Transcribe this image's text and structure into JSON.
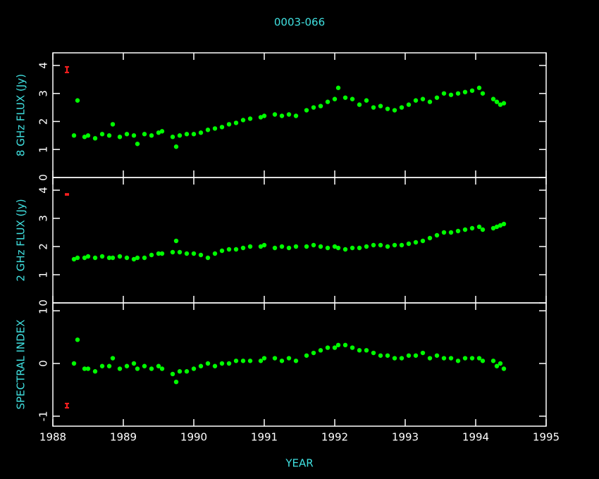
{
  "title": "0003-066",
  "xlabel": "YEAR",
  "chart_data": [
    {
      "type": "scatter",
      "ylabel": "8 GHz FLUX (Jy)",
      "color": "#00ff00",
      "x": [
        1988.3,
        1988.35,
        1988.45,
        1988.5,
        1988.6,
        1988.7,
        1988.8,
        1988.85,
        1988.95,
        1989.05,
        1989.15,
        1989.2,
        1989.3,
        1989.4,
        1989.5,
        1989.55,
        1989.7,
        1989.75,
        1989.8,
        1989.9,
        1990.0,
        1990.1,
        1990.2,
        1990.3,
        1990.4,
        1990.5,
        1990.6,
        1990.7,
        1990.8,
        1990.95,
        1991.0,
        1991.15,
        1991.25,
        1991.35,
        1991.45,
        1991.6,
        1991.7,
        1991.8,
        1991.9,
        1992.0,
        1992.05,
        1992.15,
        1992.25,
        1992.35,
        1992.45,
        1992.55,
        1992.65,
        1992.75,
        1992.85,
        1992.95,
        1993.05,
        1993.15,
        1993.25,
        1993.35,
        1993.45,
        1993.55,
        1993.65,
        1993.75,
        1993.85,
        1993.95,
        1994.05,
        1994.1,
        1994.25,
        1994.3,
        1994.35,
        1994.4
      ],
      "values": [
        1.5,
        2.75,
        1.45,
        1.5,
        1.4,
        1.55,
        1.5,
        1.9,
        1.45,
        1.55,
        1.5,
        1.2,
        1.55,
        1.5,
        1.6,
        1.65,
        1.45,
        1.1,
        1.5,
        1.55,
        1.55,
        1.6,
        1.7,
        1.75,
        1.8,
        1.9,
        1.95,
        2.05,
        2.1,
        2.15,
        2.2,
        2.25,
        2.2,
        2.25,
        2.2,
        2.4,
        2.5,
        2.55,
        2.7,
        2.8,
        3.2,
        2.85,
        2.8,
        2.6,
        2.75,
        2.5,
        2.55,
        2.45,
        2.4,
        2.5,
        2.6,
        2.75,
        2.8,
        2.7,
        2.85,
        3.0,
        2.95,
        3.0,
        3.05,
        3.1,
        3.2,
        3.0,
        2.8,
        2.7,
        2.6,
        2.65
      ],
      "xlim": [
        1988,
        1995
      ],
      "xticks": [
        1988,
        1989,
        1990,
        1991,
        1992,
        1993,
        1994,
        1995
      ],
      "ylim": [
        0,
        4.45
      ],
      "yticks": [
        0,
        1,
        2,
        3,
        4
      ],
      "error_bar": {
        "x": 1988.2,
        "y": 3.85,
        "error": 0.1,
        "color": "#ff2020"
      }
    },
    {
      "type": "scatter",
      "ylabel": "2 GHz FLUX (Jy)",
      "color": "#00ff00",
      "x": [
        1988.3,
        1988.35,
        1988.45,
        1988.5,
        1988.6,
        1988.7,
        1988.8,
        1988.85,
        1988.95,
        1989.05,
        1989.15,
        1989.2,
        1989.3,
        1989.4,
        1989.5,
        1989.55,
        1989.7,
        1989.75,
        1989.8,
        1989.9,
        1990.0,
        1990.1,
        1990.2,
        1990.3,
        1990.4,
        1990.5,
        1990.6,
        1990.7,
        1990.8,
        1990.95,
        1991.0,
        1991.15,
        1991.25,
        1991.35,
        1991.45,
        1991.6,
        1991.7,
        1991.8,
        1991.9,
        1992.0,
        1992.05,
        1992.15,
        1992.25,
        1992.35,
        1992.45,
        1992.55,
        1992.65,
        1992.75,
        1992.85,
        1992.95,
        1993.05,
        1993.15,
        1993.25,
        1993.35,
        1993.45,
        1993.55,
        1993.65,
        1993.75,
        1993.85,
        1993.95,
        1994.05,
        1994.1,
        1994.25,
        1994.3,
        1994.35,
        1994.4
      ],
      "values": [
        1.55,
        1.6,
        1.6,
        1.65,
        1.6,
        1.65,
        1.6,
        1.6,
        1.65,
        1.6,
        1.55,
        1.6,
        1.6,
        1.7,
        1.75,
        1.75,
        1.8,
        2.2,
        1.8,
        1.75,
        1.75,
        1.7,
        1.6,
        1.75,
        1.85,
        1.9,
        1.9,
        1.95,
        2.0,
        2.0,
        2.05,
        1.95,
        2.0,
        1.95,
        2.0,
        2.0,
        2.05,
        2.0,
        1.95,
        2.0,
        1.95,
        1.9,
        1.95,
        1.95,
        2.0,
        2.05,
        2.05,
        2.0,
        2.05,
        2.05,
        2.1,
        2.15,
        2.2,
        2.3,
        2.4,
        2.5,
        2.5,
        2.55,
        2.6,
        2.65,
        2.7,
        2.6,
        2.65,
        2.7,
        2.75,
        2.8
      ],
      "xlim": [
        1988,
        1995
      ],
      "xticks": [
        1988,
        1989,
        1990,
        1991,
        1992,
        1993,
        1994,
        1995
      ],
      "ylim": [
        0,
        4.45
      ],
      "yticks": [
        0,
        1,
        2,
        3,
        4
      ],
      "error_bar": {
        "x": 1988.2,
        "y": 3.85,
        "error": 0.02,
        "color": "#ff2020"
      }
    },
    {
      "type": "scatter",
      "ylabel": "SPECTRAL INDEX",
      "color": "#00ff00",
      "x": [
        1988.3,
        1988.35,
        1988.45,
        1988.5,
        1988.6,
        1988.7,
        1988.8,
        1988.85,
        1988.95,
        1989.05,
        1989.15,
        1989.2,
        1989.3,
        1989.4,
        1989.5,
        1989.55,
        1989.7,
        1989.75,
        1989.8,
        1989.9,
        1990.0,
        1990.1,
        1990.2,
        1990.3,
        1990.4,
        1990.5,
        1990.6,
        1990.7,
        1990.8,
        1990.95,
        1991.0,
        1991.15,
        1991.25,
        1991.35,
        1991.45,
        1991.6,
        1991.7,
        1991.8,
        1991.9,
        1992.0,
        1992.05,
        1992.15,
        1992.25,
        1992.35,
        1992.45,
        1992.55,
        1992.65,
        1992.75,
        1992.85,
        1992.95,
        1993.05,
        1993.15,
        1993.25,
        1993.35,
        1993.45,
        1993.55,
        1993.65,
        1993.75,
        1993.85,
        1993.95,
        1994.05,
        1994.1,
        1994.25,
        1994.3,
        1994.35,
        1994.4
      ],
      "values": [
        0.0,
        0.45,
        -0.1,
        -0.1,
        -0.15,
        -0.05,
        -0.05,
        0.1,
        -0.1,
        -0.05,
        0.0,
        -0.1,
        -0.05,
        -0.1,
        -0.05,
        -0.1,
        -0.2,
        -0.35,
        -0.15,
        -0.15,
        -0.1,
        -0.05,
        0.0,
        -0.05,
        0.0,
        0.0,
        0.05,
        0.05,
        0.05,
        0.05,
        0.1,
        0.1,
        0.05,
        0.1,
        0.05,
        0.15,
        0.2,
        0.25,
        0.3,
        0.3,
        0.35,
        0.35,
        0.3,
        0.25,
        0.25,
        0.2,
        0.15,
        0.15,
        0.1,
        0.1,
        0.15,
        0.15,
        0.2,
        0.1,
        0.15,
        0.1,
        0.1,
        0.05,
        0.1,
        0.1,
        0.1,
        0.05,
        0.05,
        -0.05,
        0.0,
        -0.1
      ],
      "xlim": [
        1988,
        1995
      ],
      "xticks": [
        1988,
        1989,
        1990,
        1991,
        1992,
        1993,
        1994,
        1995
      ],
      "ylim": [
        -1.19,
        1.15
      ],
      "yticks": [
        -1,
        0,
        1
      ],
      "error_bar": {
        "x": 1988.2,
        "y": -0.8,
        "error": 0.04,
        "color": "#ff2020"
      }
    }
  ]
}
